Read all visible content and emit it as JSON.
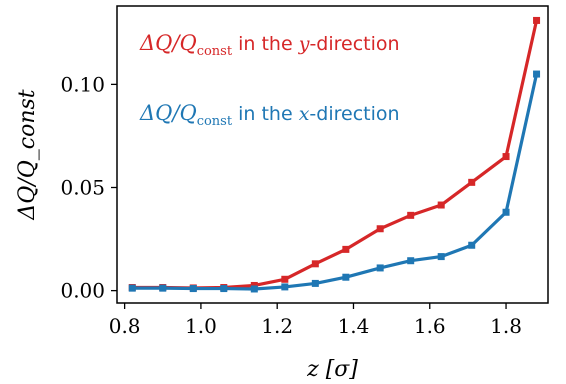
{
  "chart_data": {
    "type": "line",
    "xlabel": "z [σ]",
    "ylabel": "ΔQ/Q_const",
    "xlim": [
      0.78,
      1.91
    ],
    "ylim": [
      -0.006,
      0.138
    ],
    "xticks": [
      0.8,
      1.0,
      1.2,
      1.4,
      1.6,
      1.8
    ],
    "xtick_labels": [
      "0.8",
      "1.0",
      "1.2",
      "1.4",
      "1.6",
      "1.8"
    ],
    "yticks": [
      0.0,
      0.05,
      0.1
    ],
    "ytick_labels": [
      "0.00",
      "0.05",
      "0.10"
    ],
    "grid": false,
    "legend": "inline-text",
    "x": [
      0.82,
      0.9,
      0.98,
      1.06,
      1.14,
      1.22,
      1.3,
      1.38,
      1.47,
      1.55,
      1.63,
      1.71,
      1.8,
      1.88
    ],
    "series": [
      {
        "name": "ΔQ/Q_const in the y-direction",
        "color": "#d62728",
        "values": [
          0.0015,
          0.0015,
          0.0013,
          0.0015,
          0.0025,
          0.0055,
          0.013,
          0.02,
          0.03,
          0.0365,
          0.0415,
          0.0525,
          0.065,
          0.131
        ]
      },
      {
        "name": "ΔQ/Q_const in the x-direction",
        "color": "#1f77b4",
        "values": [
          0.0012,
          0.0012,
          0.001,
          0.001,
          0.0008,
          0.0018,
          0.0035,
          0.0065,
          0.011,
          0.0145,
          0.0165,
          0.022,
          0.038,
          0.105
        ]
      }
    ],
    "annotations": [
      {
        "prefix": "ΔQ/Q",
        "sub": "const",
        "middle": " in the ",
        "var": "y",
        "suffix": "-direction",
        "color": "#d62728"
      },
      {
        "prefix": "ΔQ/Q",
        "sub": "const",
        "middle": " in the ",
        "var": "x",
        "suffix": "-direction",
        "color": "#1f77b4"
      }
    ]
  }
}
